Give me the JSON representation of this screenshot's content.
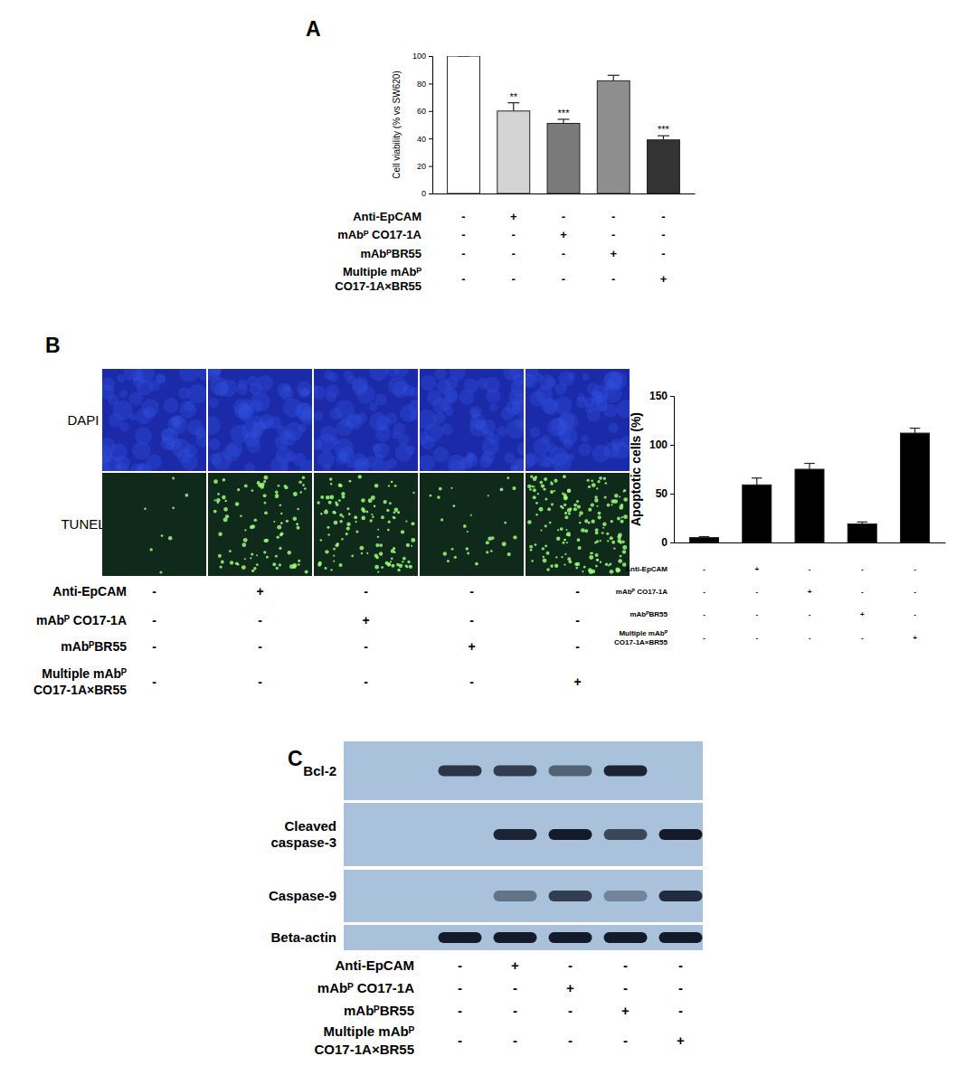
{
  "panel_labels": [
    "A",
    "B",
    "C"
  ],
  "treatments": {
    "labels": [
      [
        "Anti-EpCAM"
      ],
      [
        "mAbᴾ CO17-1A"
      ],
      [
        "mAbᴾBR55"
      ],
      [
        "Multiple mAbᴾ",
        "CO17-1A×BR55"
      ]
    ],
    "signs": [
      [
        "-",
        "+",
        "-",
        "-",
        "-"
      ],
      [
        "-",
        "-",
        "+",
        "-",
        "-"
      ],
      [
        "-",
        "-",
        "-",
        "+",
        "-"
      ],
      [
        "-",
        "-",
        "-",
        "-",
        "+"
      ]
    ]
  },
  "chart_data": [
    {
      "type": "bar",
      "categories": [
        null,
        null,
        null,
        null,
        null
      ],
      "values": [
        100,
        60,
        51,
        82,
        39
      ],
      "errors": [
        0,
        6,
        3,
        4,
        3
      ],
      "annotations": [
        null,
        "**",
        "***",
        null,
        "***"
      ],
      "colors": [
        "#ffffff",
        "#d4d4d4",
        "#7a7a7a",
        "#8e8e8e",
        "#333333"
      ],
      "y_label": "Cell viability (% vs SW620)",
      "ylim": [
        0,
        100
      ],
      "yticks": [
        0,
        20,
        40,
        60,
        80,
        100
      ],
      "tick_labels": "y"
    },
    {
      "type": "bar",
      "categories": [
        null,
        null,
        null,
        null,
        null
      ],
      "values": [
        5,
        59,
        75,
        19,
        112
      ],
      "errors": [
        1,
        7,
        6,
        2,
        5
      ],
      "color": "#000000",
      "y_label": "Apoptotic cells (%)",
      "ylim": [
        0,
        150
      ],
      "yticks": [
        0,
        50,
        100,
        150
      ],
      "tick_labels": "y"
    }
  ],
  "images": {
    "row_labels": [
      "DAPI",
      "TUNEL"
    ]
  },
  "blot": {
    "rows": [
      {
        "label": [
          "Bcl-2"
        ],
        "intensity": [
          0.8,
          0.75,
          0.55,
          0.9,
          0
        ]
      },
      {
        "label": [
          "Cleaved",
          "caspase-3"
        ],
        "intensity": [
          0,
          0.9,
          0.95,
          0.7,
          0.95
        ]
      },
      {
        "label": [
          "Caspase-9"
        ],
        "intensity": [
          0,
          0.45,
          0.75,
          0.35,
          0.85
        ]
      },
      {
        "label": [
          "Beta-actin"
        ],
        "intensity": [
          0.95,
          0.95,
          0.95,
          0.95,
          0.95
        ]
      }
    ]
  }
}
